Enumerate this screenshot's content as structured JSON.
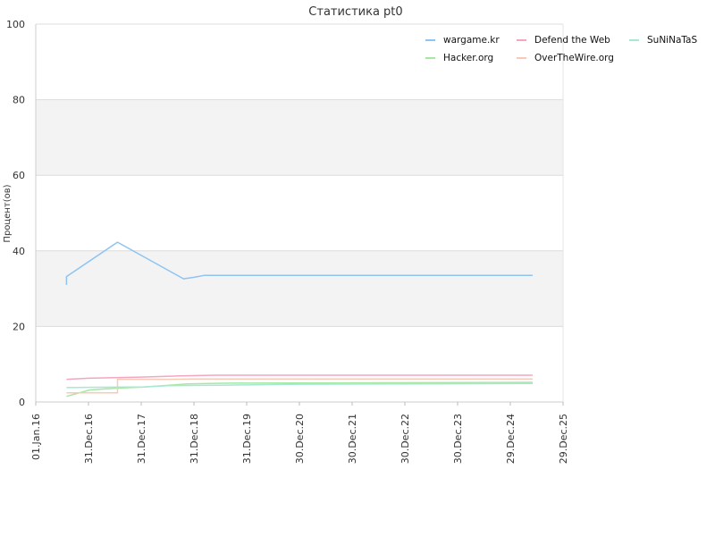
{
  "chart_data": {
    "type": "line",
    "title": "Статистика pt0",
    "ylabel": "Процент(ов)",
    "xlabel": "",
    "ylim": [
      0,
      100
    ],
    "y_ticks": [
      0,
      20,
      40,
      60,
      80,
      100
    ],
    "x_range": [
      "2016-01-01",
      "2025-12-29"
    ],
    "x_ticks": [
      {
        "date": "2016-01-01",
        "label": "01.Jan.16"
      },
      {
        "date": "2016-12-31",
        "label": "31.Dec.16"
      },
      {
        "date": "2017-12-31",
        "label": "31.Dec.17"
      },
      {
        "date": "2018-12-31",
        "label": "31.Dec.18"
      },
      {
        "date": "2019-12-31",
        "label": "31.Dec.19"
      },
      {
        "date": "2020-12-30",
        "label": "30.Dec.20"
      },
      {
        "date": "2021-12-30",
        "label": "30.Dec.21"
      },
      {
        "date": "2022-12-30",
        "label": "30.Dec.22"
      },
      {
        "date": "2023-12-30",
        "label": "30.Dec.23"
      },
      {
        "date": "2024-12-29",
        "label": "29.Dec.24"
      },
      {
        "date": "2025-12-29",
        "label": "29.Dec.25"
      }
    ],
    "grid": true,
    "alternate_bands": true,
    "legend_position": "top-right",
    "series": [
      {
        "name": "wargame.kr",
        "color": "#8ec4f2",
        "points": [
          [
            "2016-08-01",
            31
          ],
          [
            "2016-08-01",
            33.2
          ],
          [
            "2017-07-20",
            42.3
          ],
          [
            "2018-10-20",
            32.6
          ],
          [
            "2019-01-01",
            33
          ],
          [
            "2019-03-10",
            33.5
          ],
          [
            "2025-06-01",
            33.5
          ]
        ]
      },
      {
        "name": "Hacker.org",
        "color": "#a8e6a3",
        "points": [
          [
            "2016-08-01",
            1.5
          ],
          [
            "2017-01-10",
            3.2
          ],
          [
            "2017-05-01",
            3.5
          ],
          [
            "2018-02-01",
            4.0
          ],
          [
            "2018-11-15",
            4.8
          ],
          [
            "2019-09-01",
            5.0
          ],
          [
            "2025-06-01",
            5.2
          ]
        ]
      },
      {
        "name": "Defend the Web",
        "color": "#f4a6c0",
        "points": [
          [
            "2016-08-01",
            6.0
          ],
          [
            "2017-01-01",
            6.3
          ],
          [
            "2018-01-01",
            6.6
          ],
          [
            "2018-10-01",
            6.9
          ],
          [
            "2019-06-01",
            7.1
          ],
          [
            "2025-06-01",
            7.1
          ]
        ]
      },
      {
        "name": "OverTheWire.org",
        "color": "#f7c9b6",
        "points": [
          [
            "2016-08-01",
            2.4
          ],
          [
            "2017-07-20",
            2.4
          ],
          [
            "2017-07-20",
            6.0
          ],
          [
            "2018-06-01",
            6.0
          ],
          [
            "2019-01-15",
            6.1
          ],
          [
            "2025-06-01",
            6.1
          ]
        ]
      },
      {
        "name": "SuNiNaTaS",
        "color": "#a6e8d4",
        "points": [
          [
            "2016-08-01",
            3.8
          ],
          [
            "2017-03-01",
            3.9
          ],
          [
            "2018-01-15",
            4.0
          ],
          [
            "2018-07-01",
            4.3
          ],
          [
            "2019-10-01",
            4.5
          ],
          [
            "2021-01-01",
            4.7
          ],
          [
            "2025-06-01",
            4.9
          ]
        ]
      }
    ]
  }
}
